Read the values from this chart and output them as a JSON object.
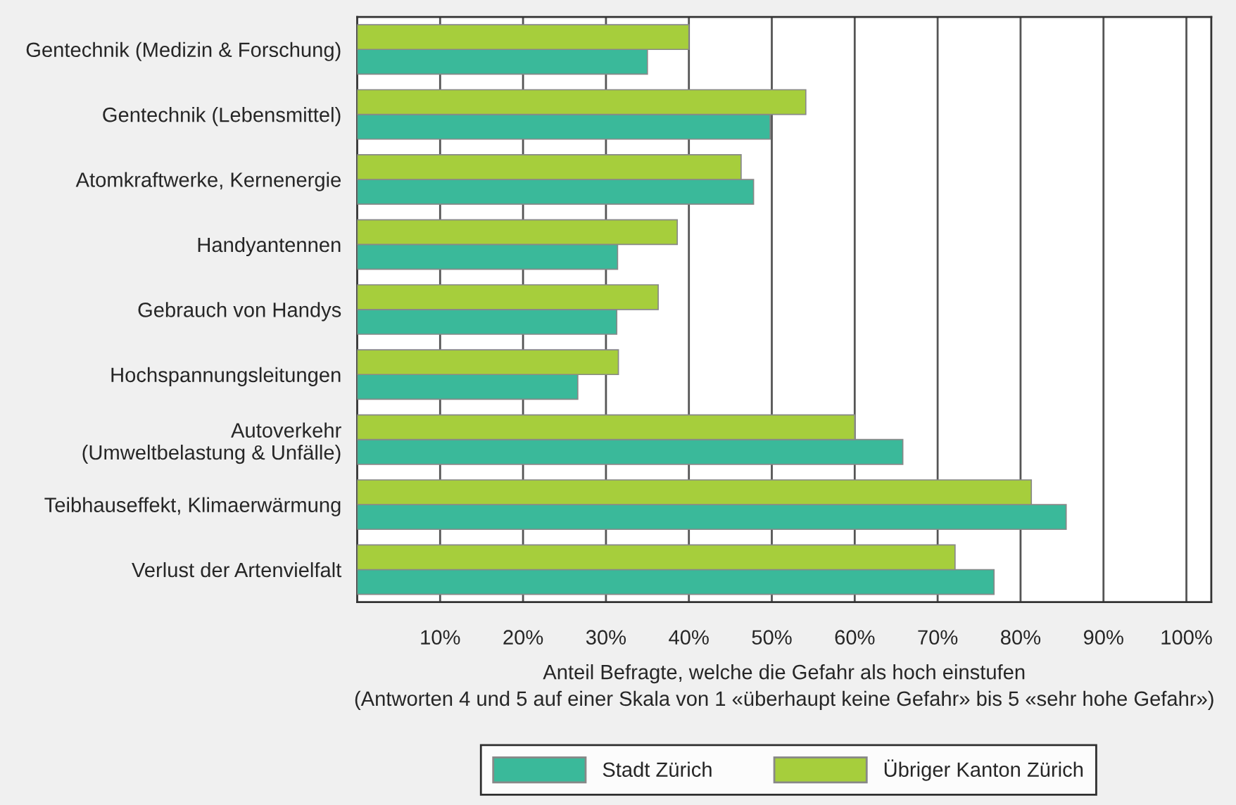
{
  "chart_data": {
    "type": "bar",
    "orientation": "horizontal",
    "categories": [
      "Gentechnik (Medizin & Forschung)",
      "Gentechnik (Lebensmittel)",
      "Atomkraftwerke, Kernenergie",
      "Handyantennen",
      "Gebrauch von Handys",
      "Hochspannungsleitungen",
      "Autoverkehr\n(Umweltbelastung & Unfälle)",
      "Teibhauseffekt, Klimaerwärmung",
      "Verlust der Artenvielfalt"
    ],
    "series": [
      {
        "name": "Stadt Zürich",
        "color": "#3ab99a",
        "values": [
          35,
          49.8,
          47.8,
          31.4,
          31.3,
          26.6,
          65.8,
          85.5,
          76.8
        ]
      },
      {
        "name": "Übriger Kanton Zürich",
        "color": "#a6ce3c",
        "values": [
          40,
          54.1,
          46.3,
          38.6,
          36.3,
          31.5,
          60,
          81.3,
          72.1
        ]
      }
    ],
    "xlabel": "Anteil Befragte, welche die Gefahr als hoch einstufen\n(Antworten 4 und 5 auf einer Skala von 1 «überhaupt keine Gefahr» bis 5 «sehr hohe Gefahr»)",
    "xlim": [
      0,
      103
    ],
    "xticks": [
      {
        "value": 10,
        "label": "10%"
      },
      {
        "value": 20,
        "label": "20%"
      },
      {
        "value": 30,
        "label": "30%"
      },
      {
        "value": 40,
        "label": "40%"
      },
      {
        "value": 50,
        "label": "50%"
      },
      {
        "value": 60,
        "label": "60%"
      },
      {
        "value": 70,
        "label": "70%"
      },
      {
        "value": 80,
        "label": "80%"
      },
      {
        "value": 90,
        "label": "90%"
      },
      {
        "value": 100,
        "label": "100%"
      }
    ],
    "grid": "x",
    "legend": "bottom"
  }
}
